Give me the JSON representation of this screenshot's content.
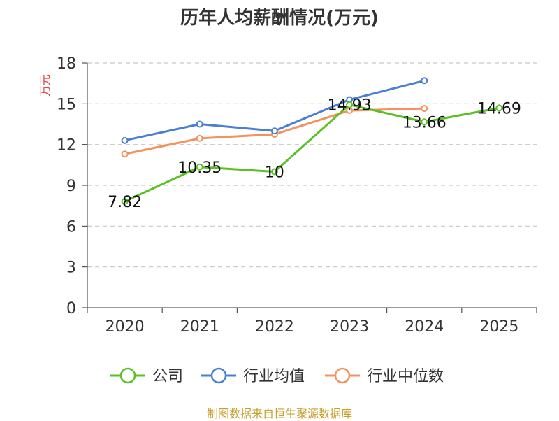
{
  "chart_data": {
    "type": "line",
    "title": "历年人均薪酬情况(万元)",
    "ylabel": "万元",
    "xlabel": "",
    "categories": [
      "2020",
      "2021",
      "2022",
      "2023",
      "2024",
      "2025"
    ],
    "ylim": [
      0,
      18
    ],
    "yticks": [
      0,
      3,
      6,
      9,
      12,
      15,
      18
    ],
    "grid": "horizontal-dashed",
    "legend_position": "bottom",
    "series": [
      {
        "name": "公司",
        "color": "#5ac124",
        "values": [
          7.82,
          10.35,
          10,
          14.93,
          13.66,
          14.69
        ],
        "labels": [
          "7.82",
          "10.35",
          "10",
          "14.93",
          "13.66",
          "14.69"
        ]
      },
      {
        "name": "行业均值",
        "color": "#4a7fd6",
        "values": [
          12.3,
          13.5,
          13.0,
          15.3,
          16.7,
          null
        ]
      },
      {
        "name": "行业中位数",
        "color": "#f4925f",
        "values": [
          11.3,
          12.45,
          12.75,
          14.5,
          14.65,
          null
        ]
      }
    ]
  },
  "footer": {
    "source": "制图数据来自恒生聚源数据库"
  }
}
